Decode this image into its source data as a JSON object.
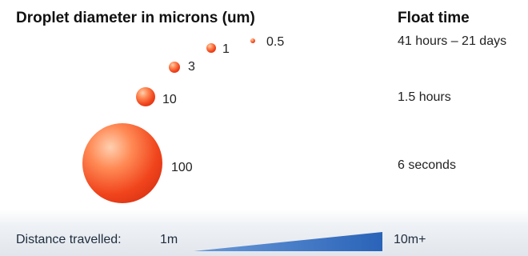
{
  "headers": {
    "diameter": "Droplet diameter in microns (um)",
    "float_time": "Float time"
  },
  "droplets": [
    {
      "size": "100",
      "time": "6 seconds"
    },
    {
      "size": "10",
      "time": "1.5 hours"
    },
    {
      "size": "3",
      "time": ""
    },
    {
      "size": "1",
      "time": ""
    },
    {
      "size": "0.5",
      "time": "41 hours – 21 days"
    }
  ],
  "distance": {
    "label": "Distance travelled:",
    "start": "1m",
    "end": "10m+"
  },
  "colors": {
    "droplet": "#f0441c",
    "wedge": "#2f6fc0"
  }
}
